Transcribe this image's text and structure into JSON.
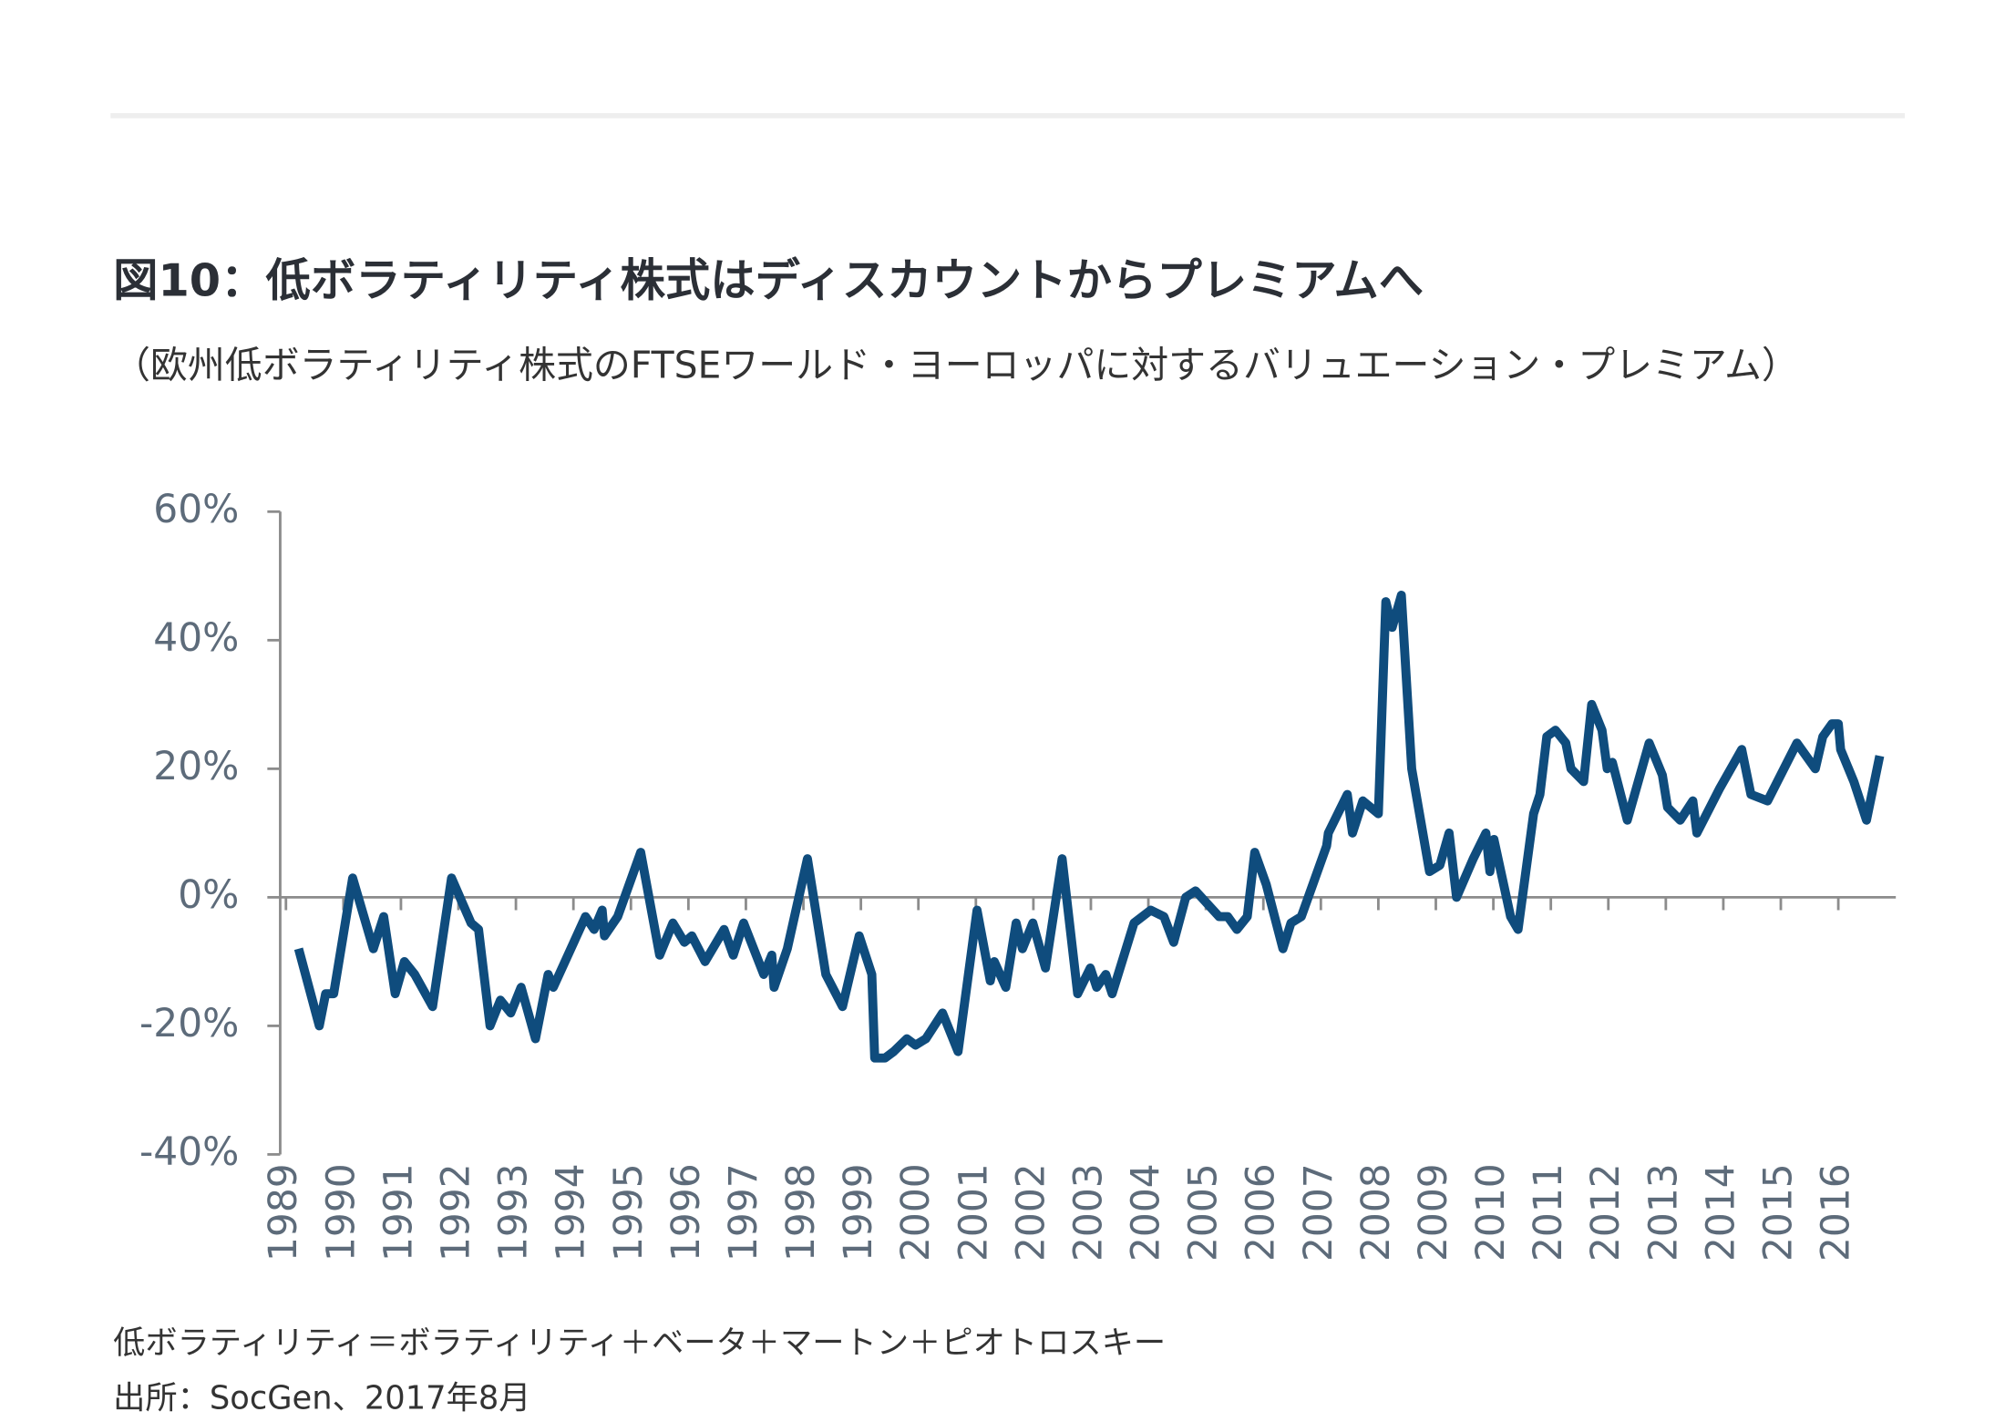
{
  "chart_data": {
    "type": "line",
    "title": "図10：低ボラティリティ株式はディスカウントからプレミアムへ",
    "subtitle": "（欧州低ボラティリティ株式のFTSEワールド・ヨーロッパに対するバリュエーション・プレミアム）",
    "notes": [
      "低ボラティリティ＝ボラティリティ＋ベータ＋マートン＋ピオトロスキー",
      "出所：SocGen、2017年8月"
    ],
    "x": [
      1989.22,
      1989.58,
      1989.69,
      1989.83,
      1990.16,
      1990.52,
      1990.7,
      1990.9,
      1991.06,
      1991.24,
      1991.55,
      1991.88,
      1992.22,
      1992.35,
      1992.55,
      1992.73,
      1992.91,
      1993.09,
      1993.34,
      1993.56,
      1993.65,
      1994.21,
      1994.36,
      1994.5,
      1994.54,
      1994.77,
      1995.17,
      1995.5,
      1995.73,
      1995.93,
      1996.06,
      1996.29,
      1996.62,
      1996.78,
      1996.96,
      1997.31,
      1997.45,
      1997.49,
      1997.72,
      1998.07,
      1998.39,
      1998.68,
      1998.97,
      1999.19,
      1999.24,
      1999.42,
      1999.57,
      1999.8,
      1999.95,
      2000.13,
      2000.42,
      2000.69,
      2001.02,
      2001.25,
      2001.32,
      2001.52,
      2001.7,
      2001.81,
      2001.99,
      2002.21,
      2002.5,
      2002.77,
      2002.99,
      2003.1,
      2003.26,
      2003.37,
      2003.75,
      2004.04,
      2004.27,
      2004.44,
      2004.65,
      2004.82,
      2005.23,
      2005.38,
      2005.54,
      2005.72,
      2005.85,
      2006.05,
      2006.34,
      2006.48,
      2006.66,
      2007.1,
      2007.13,
      2007.46,
      2007.55,
      2007.73,
      2008.0,
      2008.13,
      2008.24,
      2008.4,
      2008.58,
      2008.89,
      2009.07,
      2009.23,
      2009.36,
      2009.65,
      2009.87,
      2009.94,
      2010.01,
      2010.3,
      2010.43,
      2010.7,
      2010.81,
      2010.93,
      2011.08,
      2011.26,
      2011.35,
      2011.57,
      2011.71,
      2011.89,
      2011.98,
      2012.07,
      2012.33,
      2012.71,
      2012.94,
      2013.03,
      2013.25,
      2013.47,
      2013.54,
      2013.94,
      2014.32,
      2014.48,
      2014.77,
      2015.28,
      2015.6,
      2015.73,
      2015.89,
      2016.0,
      2016.04,
      2016.27,
      2016.49,
      2016.72
    ],
    "series": [
      {
        "color": "#0f4c7d",
        "values": [
          -8,
          -20,
          -15,
          -15,
          3,
          -8,
          -3,
          -15,
          -10,
          -12,
          -17,
          3,
          -4,
          -5,
          -20,
          -16,
          -18,
          -14,
          -22,
          -12,
          -14,
          -3,
          -5,
          -2,
          -6,
          -3,
          7,
          -9,
          -4,
          -7,
          -6,
          -10,
          -5,
          -9,
          -4,
          -12,
          -9,
          -14,
          -8,
          6,
          -12,
          -17,
          -6,
          -12,
          -25,
          -25,
          -24,
          -22,
          -23,
          -22,
          -18,
          -24,
          -2,
          -13,
          -10,
          -14,
          -4,
          -8,
          -4,
          -11,
          6,
          -15,
          -11,
          -14,
          -12,
          -15,
          -4,
          -2,
          -3,
          -7,
          0,
          1,
          -3,
          -3,
          -5,
          -3,
          7,
          2,
          -8,
          -4,
          -3,
          8,
          10,
          16,
          10,
          15,
          13,
          46,
          42,
          47,
          20,
          4,
          5,
          10,
          0,
          6,
          10,
          4,
          9,
          -3,
          -5,
          13,
          16,
          25,
          26,
          24,
          20,
          18,
          30,
          26,
          20,
          21,
          12,
          24,
          19,
          14,
          12,
          15,
          10,
          17,
          23,
          16,
          15,
          24,
          20,
          25,
          27,
          27,
          23,
          18,
          12,
          22
        ]
      }
    ],
    "xlim": [
      1988.9,
      2017.0
    ],
    "xticks": [
      1989,
      1990,
      1991,
      1992,
      1993,
      1994,
      1995,
      1996,
      1997,
      1998,
      1999,
      2000,
      2001,
      2002,
      2003,
      2004,
      2005,
      2006,
      2007,
      2008,
      2009,
      2010,
      2011,
      2012,
      2013,
      2014,
      2015,
      2016
    ],
    "ylim": [
      -40,
      60
    ],
    "yticks": [
      {
        "value": -40,
        "label": "-40%"
      },
      {
        "value": -20,
        "label": "-20%"
      },
      {
        "value": 0,
        "label": "0%"
      },
      {
        "value": 20,
        "label": "20%"
      },
      {
        "value": 40,
        "label": "40%"
      },
      {
        "value": 60,
        "label": "60%"
      }
    ]
  }
}
